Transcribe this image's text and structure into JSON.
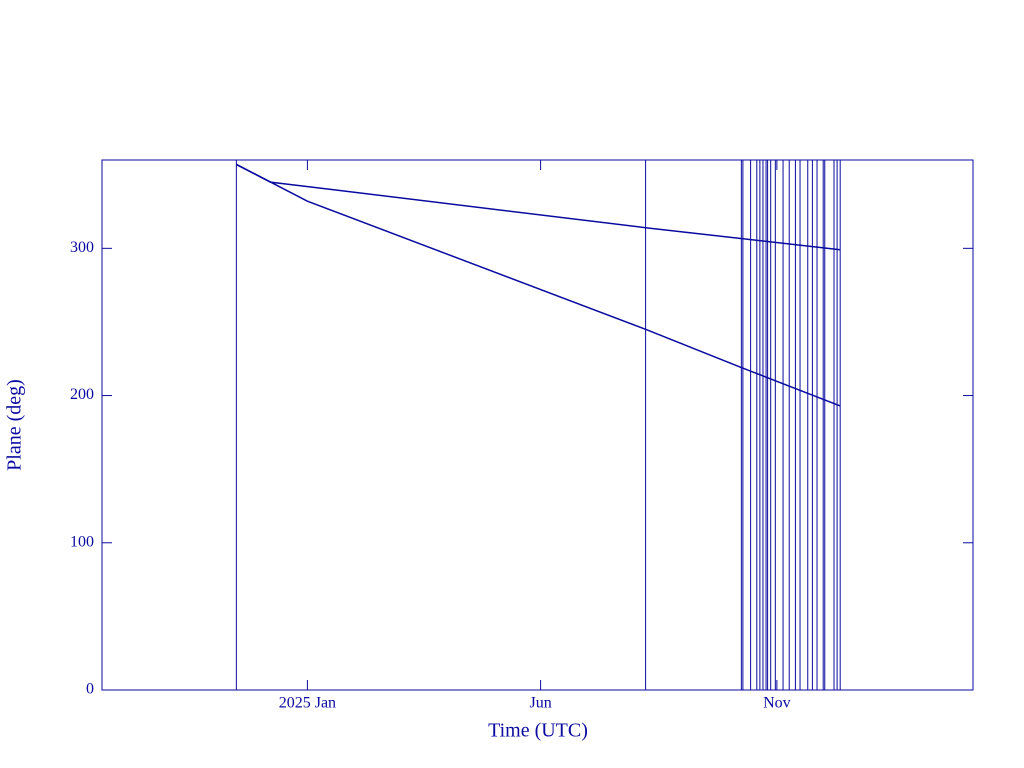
{
  "chart_data": {
    "type": "line",
    "xlabel": "Time (UTC)",
    "ylabel": "Plane (deg)",
    "xlim": [
      "2024-08-21",
      "2026-03-08"
    ],
    "xticks": [
      {
        "value": "2025-01-01",
        "label": "2025 Jan"
      },
      {
        "value": "2025-06-01",
        "label": "Jun"
      },
      {
        "value": "2025-11-01",
        "label": "Nov"
      }
    ],
    "ylim": [
      0,
      360
    ],
    "yticks": [
      0,
      100,
      200,
      300
    ],
    "color": "#0a0aa0",
    "series": [
      {
        "x": [
          "2024-11-16",
          "2024-12-08",
          "2025-01-16",
          "2025-08-08",
          "2025-12-12"
        ],
        "values": [
          357,
          345,
          340,
          314,
          299
        ]
      },
      {
        "x": [
          "2024-11-16",
          "2025-01-01",
          "2025-08-08",
          "2025-10-09",
          "2025-12-12"
        ],
        "values": [
          357,
          332,
          245,
          219,
          193
        ]
      }
    ],
    "vlines": [
      "2024-11-16",
      "2025-08-08",
      "2025-10-09",
      "2025-10-10",
      "2025-10-15",
      "2025-10-19",
      "2025-10-21",
      "2025-10-23",
      "2025-10-25",
      "2025-10-26",
      "2025-10-28",
      "2025-10-31",
      "2025-11-05",
      "2025-11-09",
      "2025-11-13",
      "2025-11-16",
      "2025-11-21",
      "2025-11-24",
      "2025-11-27",
      "2025-12-01",
      "2025-12-02",
      "2025-12-08",
      "2025-12-10",
      "2025-12-12"
    ]
  }
}
